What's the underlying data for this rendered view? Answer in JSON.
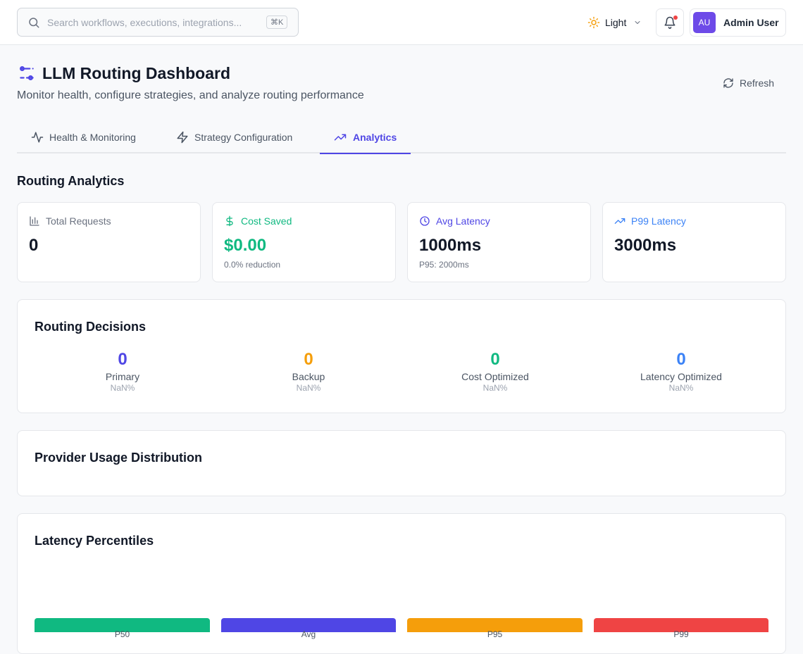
{
  "header": {
    "search_placeholder": "Search workflows, executions, integrations...",
    "shortcut": "⌘K",
    "theme": "Light",
    "avatar": "AU",
    "user": "Admin User"
  },
  "page": {
    "title": "LLM Routing Dashboard",
    "subtitle": "Monitor health, configure strategies, and analyze routing performance",
    "refresh": "Refresh"
  },
  "tabs": [
    "Health & Monitoring",
    "Strategy Configuration",
    "Analytics"
  ],
  "section_title": "Routing Analytics",
  "stats": [
    {
      "label": "Total Requests",
      "value": "0"
    },
    {
      "label": "Cost Saved",
      "value": "$0.00",
      "note": "0.0% reduction"
    },
    {
      "label": "Avg Latency",
      "value": "1000ms",
      "note": "P95: 2000ms"
    },
    {
      "label": "P99 Latency",
      "value": "3000ms"
    }
  ],
  "routing_decisions": {
    "title": "Routing Decisions",
    "items": [
      {
        "count": "0",
        "label": "Primary",
        "share": "NaN%"
      },
      {
        "count": "0",
        "label": "Backup",
        "share": "NaN%"
      },
      {
        "count": "0",
        "label": "Cost Optimized",
        "share": "NaN%"
      },
      {
        "count": "0",
        "label": "Latency Optimized",
        "share": "NaN%"
      }
    ]
  },
  "provider_usage": {
    "title": "Provider Usage Distribution"
  },
  "latency_percentiles": {
    "title": "Latency Percentiles",
    "bars": [
      "P50",
      "Avg",
      "P95",
      "P99"
    ]
  }
}
